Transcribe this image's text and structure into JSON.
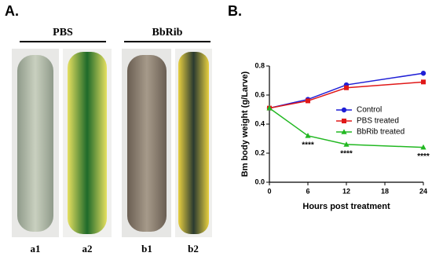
{
  "panel_a": {
    "label": "A.",
    "groups": [
      "PBS",
      "BbRib"
    ],
    "images": [
      "a1",
      "a2",
      "b1",
      "b2"
    ]
  },
  "panel_b": {
    "label": "B."
  },
  "chart_data": {
    "type": "line",
    "x_label": "Hours post treatment",
    "y_label": "Bm body weight (g/Larve)",
    "x": [
      0,
      6,
      12,
      24
    ],
    "series": [
      {
        "name": "Control",
        "color": "#1f1fd6",
        "marker": "circle",
        "values": [
          0.51,
          0.57,
          0.67,
          0.75
        ]
      },
      {
        "name": "PBS treated",
        "color": "#e01818",
        "marker": "square",
        "values": [
          0.51,
          0.56,
          0.65,
          0.69
        ]
      },
      {
        "name": "BbRib treated",
        "color": "#22b822",
        "marker": "triangle",
        "values": [
          0.51,
          0.32,
          0.26,
          0.24
        ]
      }
    ],
    "xlim": [
      0,
      24
    ],
    "xticks": [
      0,
      6,
      12,
      18,
      24
    ],
    "ylim": [
      0,
      0.8
    ],
    "yticks": [
      {
        "value": 0,
        "label": "0.0"
      },
      0.2,
      0.4,
      0.6,
      0.8
    ],
    "legend": "upper right",
    "grid": false,
    "annotations": [
      {
        "text": "****",
        "x": 6
      },
      {
        "text": "****",
        "x": 12
      },
      {
        "text": "****",
        "x": 24
      }
    ]
  }
}
